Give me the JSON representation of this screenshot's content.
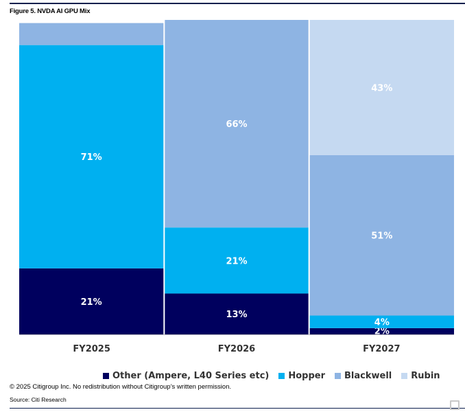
{
  "figure_title": "Figure 5. NVDA AI GPU Mix",
  "chart_data": {
    "type": "bar",
    "stacked": "100%",
    "categories": [
      "FY2025",
      "FY2026",
      "FY2027"
    ],
    "series": [
      {
        "name": "Other (Ampere, L40 Series etc)",
        "color": "#00005e",
        "values": [
          21,
          13,
          2
        ],
        "labels": [
          "21%",
          "13%",
          "2%"
        ]
      },
      {
        "name": "Hopper",
        "color": "#00b0f0",
        "values": [
          71,
          21,
          4
        ],
        "labels": [
          "71%",
          "21%",
          "4%"
        ]
      },
      {
        "name": "Blackwell",
        "color": "#8eb4e3",
        "values": [
          7,
          66,
          51
        ],
        "labels": [
          "",
          "66%",
          "51%"
        ]
      },
      {
        "name": "Rubin",
        "color": "#c5d9f1",
        "values": [
          0,
          0,
          43
        ],
        "labels": [
          "",
          "",
          "43%"
        ]
      }
    ],
    "ylim": [
      0,
      100
    ],
    "legend_position": "bottom",
    "grid": false
  },
  "footer": {
    "copyright": "© 2025 Citigroup Inc. No redistribution without Citigroup’s written permission.",
    "source": "Source: Citi Research"
  }
}
